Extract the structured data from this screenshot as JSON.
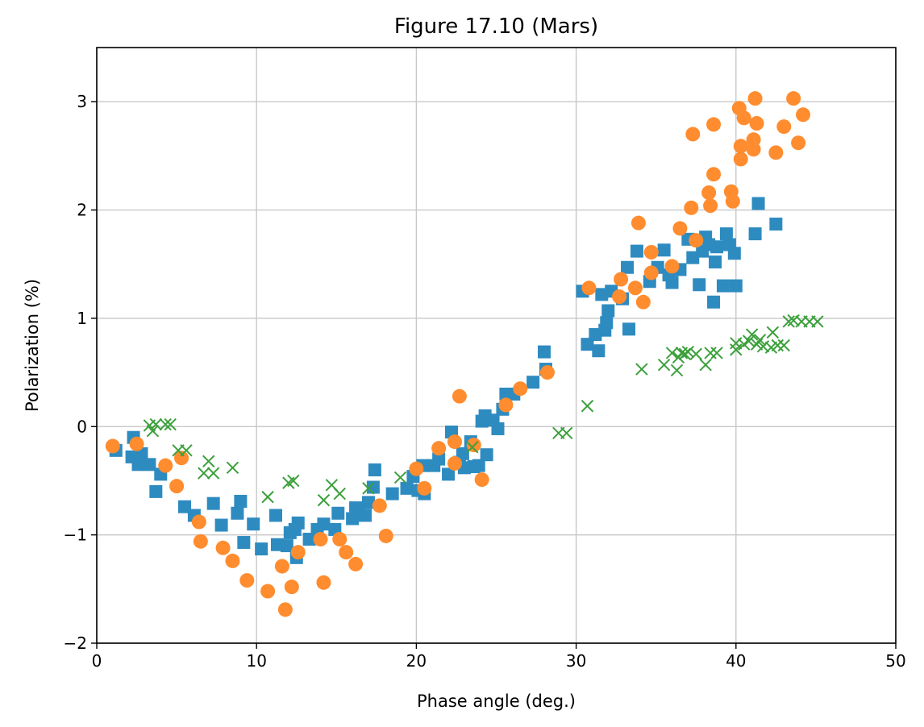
{
  "chart_data": {
    "type": "scatter",
    "title": "Figure 17.10 (Mars)",
    "xlabel": "Phase angle (deg.)",
    "ylabel": "Polarization (%)",
    "xlim": [
      0,
      50
    ],
    "ylim": [
      -2,
      3.5
    ],
    "xticks": [
      0,
      10,
      20,
      30,
      40,
      50
    ],
    "yticks": [
      -2,
      -1,
      0,
      1,
      2,
      3
    ],
    "xtick_labels": [
      "0",
      "10",
      "20",
      "30",
      "40",
      "50"
    ],
    "ytick_labels": [
      "−2",
      "−1",
      "0",
      "1",
      "2",
      "3"
    ],
    "grid": true,
    "series": [
      {
        "marker": "square",
        "color": "#2e8bc0",
        "points": [
          [
            1.2,
            -0.22
          ],
          [
            2.3,
            -0.1
          ],
          [
            2.2,
            -0.28
          ],
          [
            2.6,
            -0.35
          ],
          [
            2.8,
            -0.25
          ],
          [
            3.3,
            -0.35
          ],
          [
            3.7,
            -0.6
          ],
          [
            4.0,
            -0.44
          ],
          [
            5.5,
            -0.74
          ],
          [
            6.1,
            -0.82
          ],
          [
            7.3,
            -0.71
          ],
          [
            7.8,
            -0.91
          ],
          [
            8.8,
            -0.8
          ],
          [
            9.0,
            -0.69
          ],
          [
            9.2,
            -1.07
          ],
          [
            9.8,
            -0.9
          ],
          [
            10.3,
            -1.13
          ],
          [
            11.2,
            -0.82
          ],
          [
            11.3,
            -1.09
          ],
          [
            11.9,
            -1.1
          ],
          [
            12.1,
            -0.98
          ],
          [
            12.4,
            -0.95
          ],
          [
            12.5,
            -1.21
          ],
          [
            12.6,
            -0.89
          ],
          [
            13.3,
            -1.04
          ],
          [
            13.8,
            -0.95
          ],
          [
            14.2,
            -0.9
          ],
          [
            14.9,
            -0.95
          ],
          [
            15.1,
            -0.8
          ],
          [
            16.0,
            -0.85
          ],
          [
            16.2,
            -0.75
          ],
          [
            16.4,
            -0.78
          ],
          [
            16.8,
            -0.82
          ],
          [
            17.0,
            -0.7
          ],
          [
            17.3,
            -0.56
          ],
          [
            17.4,
            -0.4
          ],
          [
            18.5,
            -0.62
          ],
          [
            19.4,
            -0.57
          ],
          [
            19.8,
            -0.46
          ],
          [
            20.1,
            -0.59
          ],
          [
            20.4,
            -0.36
          ],
          [
            20.5,
            -0.62
          ],
          [
            21.1,
            -0.36
          ],
          [
            21.4,
            -0.3
          ],
          [
            22.0,
            -0.44
          ],
          [
            22.2,
            -0.05
          ],
          [
            22.7,
            -0.33
          ],
          [
            22.9,
            -0.25
          ],
          [
            23.0,
            -0.38
          ],
          [
            23.4,
            -0.14
          ],
          [
            23.6,
            -0.37
          ],
          [
            23.9,
            -0.36
          ],
          [
            24.1,
            0.05
          ],
          [
            24.3,
            0.1
          ],
          [
            24.4,
            -0.26
          ],
          [
            24.8,
            0.06
          ],
          [
            25.1,
            -0.02
          ],
          [
            25.4,
            0.16
          ],
          [
            25.6,
            0.3
          ],
          [
            26.1,
            0.3
          ],
          [
            27.3,
            0.41
          ],
          [
            28.0,
            0.69
          ],
          [
            28.1,
            0.53
          ],
          [
            30.4,
            1.25
          ],
          [
            30.7,
            0.76
          ],
          [
            31.2,
            0.85
          ],
          [
            31.4,
            0.7
          ],
          [
            31.6,
            1.22
          ],
          [
            31.8,
            0.89
          ],
          [
            31.9,
            0.96
          ],
          [
            32.0,
            1.07
          ],
          [
            32.2,
            1.25
          ],
          [
            32.9,
            1.18
          ],
          [
            33.2,
            1.47
          ],
          [
            33.3,
            0.9
          ],
          [
            33.8,
            1.62
          ],
          [
            34.6,
            1.34
          ],
          [
            35.1,
            1.47
          ],
          [
            35.5,
            1.63
          ],
          [
            35.8,
            1.4
          ],
          [
            36.0,
            1.33
          ],
          [
            36.5,
            1.45
          ],
          [
            37.0,
            1.73
          ],
          [
            37.3,
            1.56
          ],
          [
            37.7,
            1.31
          ],
          [
            37.9,
            1.62
          ],
          [
            38.1,
            1.75
          ],
          [
            38.3,
            1.68
          ],
          [
            38.6,
            1.15
          ],
          [
            38.7,
            1.52
          ],
          [
            38.8,
            1.66
          ],
          [
            39.2,
            1.3
          ],
          [
            39.4,
            1.78
          ],
          [
            39.6,
            1.68
          ],
          [
            39.9,
            1.6
          ],
          [
            40.0,
            1.3
          ],
          [
            41.2,
            1.78
          ],
          [
            41.4,
            2.06
          ],
          [
            42.5,
            1.87
          ]
        ]
      },
      {
        "marker": "circle",
        "color": "#ff8c2e",
        "points": [
          [
            1.0,
            -0.18
          ],
          [
            2.5,
            -0.16
          ],
          [
            4.3,
            -0.36
          ],
          [
            5.0,
            -0.55
          ],
          [
            5.3,
            -0.29
          ],
          [
            6.4,
            -0.88
          ],
          [
            6.5,
            -1.06
          ],
          [
            7.9,
            -1.12
          ],
          [
            8.5,
            -1.24
          ],
          [
            9.4,
            -1.42
          ],
          [
            10.7,
            -1.52
          ],
          [
            11.6,
            -1.29
          ],
          [
            11.8,
            -1.69
          ],
          [
            12.2,
            -1.48
          ],
          [
            12.6,
            -1.16
          ],
          [
            14.0,
            -1.04
          ],
          [
            14.2,
            -1.44
          ],
          [
            15.2,
            -1.04
          ],
          [
            15.6,
            -1.16
          ],
          [
            16.2,
            -1.27
          ],
          [
            17.7,
            -0.73
          ],
          [
            18.1,
            -1.01
          ],
          [
            20.0,
            -0.39
          ],
          [
            20.5,
            -0.57
          ],
          [
            21.4,
            -0.2
          ],
          [
            22.4,
            -0.14
          ],
          [
            22.4,
            -0.34
          ],
          [
            22.7,
            0.28
          ],
          [
            23.6,
            -0.17
          ],
          [
            24.1,
            -0.49
          ],
          [
            25.6,
            0.2
          ],
          [
            26.5,
            0.35
          ],
          [
            28.2,
            0.5
          ],
          [
            30.8,
            1.28
          ],
          [
            32.7,
            1.2
          ],
          [
            32.8,
            1.36
          ],
          [
            33.7,
            1.28
          ],
          [
            33.9,
            1.88
          ],
          [
            34.2,
            1.15
          ],
          [
            34.7,
            1.61
          ],
          [
            34.7,
            1.42
          ],
          [
            36.0,
            1.48
          ],
          [
            36.5,
            1.83
          ],
          [
            37.2,
            2.02
          ],
          [
            37.3,
            2.7
          ],
          [
            37.5,
            1.72
          ],
          [
            38.3,
            2.16
          ],
          [
            38.4,
            2.04
          ],
          [
            38.6,
            2.33
          ],
          [
            38.6,
            2.79
          ],
          [
            39.7,
            2.17
          ],
          [
            39.8,
            2.08
          ],
          [
            40.2,
            2.94
          ],
          [
            40.3,
            2.47
          ],
          [
            40.3,
            2.59
          ],
          [
            40.5,
            2.85
          ],
          [
            41.1,
            2.56
          ],
          [
            41.1,
            2.65
          ],
          [
            41.2,
            3.03
          ],
          [
            41.3,
            2.8
          ],
          [
            42.5,
            2.53
          ],
          [
            43.0,
            2.77
          ],
          [
            43.6,
            3.03
          ],
          [
            43.9,
            2.62
          ],
          [
            44.2,
            2.88
          ]
        ]
      },
      {
        "marker": "x",
        "color": "#3ca03c",
        "points": [
          [
            3.3,
            0.01
          ],
          [
            3.5,
            -0.04
          ],
          [
            3.7,
            0.02
          ],
          [
            4.3,
            0.02
          ],
          [
            4.6,
            0.02
          ],
          [
            5.1,
            -0.22
          ],
          [
            5.6,
            -0.22
          ],
          [
            6.7,
            -0.43
          ],
          [
            7.0,
            -0.32
          ],
          [
            7.3,
            -0.43
          ],
          [
            8.5,
            -0.38
          ],
          [
            10.7,
            -0.65
          ],
          [
            12.0,
            -0.52
          ],
          [
            12.3,
            -0.5
          ],
          [
            14.2,
            -0.68
          ],
          [
            14.7,
            -0.54
          ],
          [
            15.2,
            -0.62
          ],
          [
            17.0,
            -0.57
          ],
          [
            19.0,
            -0.47
          ],
          [
            23.5,
            -0.19
          ],
          [
            28.9,
            -0.06
          ],
          [
            29.4,
            -0.06
          ],
          [
            30.7,
            0.19
          ],
          [
            34.1,
            0.53
          ],
          [
            35.5,
            0.57
          ],
          [
            36.0,
            0.68
          ],
          [
            36.3,
            0.52
          ],
          [
            36.4,
            0.64
          ],
          [
            36.6,
            0.68
          ],
          [
            36.8,
            0.67
          ],
          [
            37.0,
            0.69
          ],
          [
            37.5,
            0.67
          ],
          [
            38.1,
            0.57
          ],
          [
            38.4,
            0.68
          ],
          [
            38.8,
            0.68
          ],
          [
            40.0,
            0.71
          ],
          [
            40.0,
            0.77
          ],
          [
            40.5,
            0.76
          ],
          [
            40.8,
            0.79
          ],
          [
            41.0,
            0.85
          ],
          [
            41.3,
            0.76
          ],
          [
            41.5,
            0.8
          ],
          [
            41.7,
            0.74
          ],
          [
            42.2,
            0.73
          ],
          [
            42.3,
            0.87
          ],
          [
            42.6,
            0.75
          ],
          [
            43.0,
            0.75
          ],
          [
            43.3,
            0.97
          ],
          [
            43.6,
            0.98
          ],
          [
            44.1,
            0.97
          ],
          [
            44.6,
            0.97
          ],
          [
            45.1,
            0.97
          ]
        ]
      }
    ]
  }
}
